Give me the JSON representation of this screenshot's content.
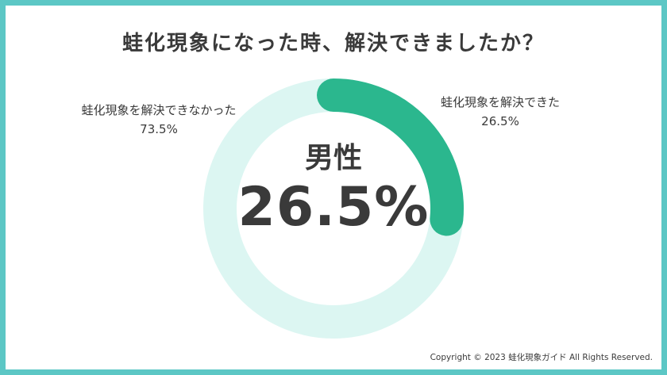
{
  "chart_data": {
    "type": "pie",
    "title": "蛙化現象になった時、解決できましたか？",
    "center_label": "男性",
    "center_value": "26.5%",
    "categories": [
      "蛙化現象を解決できた",
      "蛙化現象を解決できなかった"
    ],
    "values": [
      26.5,
      73.5
    ],
    "value_labels": [
      "26.5%",
      "73.5%"
    ],
    "colors": [
      "#2bb78e",
      "#dcf6f2"
    ]
  },
  "colors": {
    "frame": "#5cc7c5",
    "text": "#3a3a3a"
  },
  "footer": {
    "copyright": "Copyright © 2023 蛙化現象ガイド All Rights Reserved."
  }
}
